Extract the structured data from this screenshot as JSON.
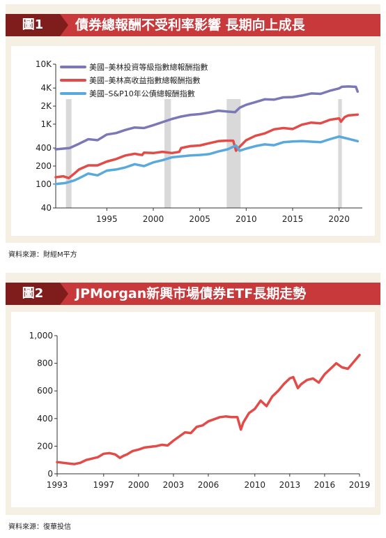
{
  "chart1": {
    "fig_label": "圖1",
    "title": "債券總報酬不受利率影響 長期向上成長",
    "source": "資料來源：財經M平方",
    "legend": [
      {
        "name": "美國–美林投資等級指數總報酬指數",
        "color": "#7b78b8"
      },
      {
        "name": "美國–美林高收益指數總報酬指數",
        "color": "#e24b47"
      },
      {
        "name": "美國–S&P10年公債總報酬指數",
        "color": "#5aa9dc"
      }
    ]
  },
  "chart2": {
    "fig_label": "圖2",
    "title": "JPMorgan新興市場債券ETF長期走勢",
    "source": "資料來源：復華投信"
  },
  "chart_data": [
    {
      "type": "line",
      "scale": "log",
      "ylim": [
        40,
        10000
      ],
      "xlim": [
        1989.5,
        2022.5
      ],
      "yticks": [
        40,
        100,
        200,
        400,
        1000,
        2000,
        4000,
        10000
      ],
      "ytick_labels": [
        "40",
        "100",
        "200",
        "400",
        "1K",
        "2K",
        "4K",
        "10K"
      ],
      "xticks": [
        1995,
        2000,
        2005,
        2010,
        2015,
        2020
      ],
      "xtick_labels": [
        "1995",
        "2000",
        "2005",
        "2010",
        "2015",
        "2020"
      ],
      "shaded_periods": [
        [
          1990.6,
          1991.2
        ],
        [
          2001.2,
          2001.9
        ],
        [
          2007.9,
          2009.4
        ],
        [
          2019.9,
          2020.3
        ]
      ],
      "series": [
        {
          "name": "美國–美林投資等級指數總報酬指數",
          "color": "#7b78b8",
          "x": [
            1989.5,
            1991,
            1992,
            1993,
            1994,
            1995,
            1996,
            1997,
            1998,
            1999,
            2000,
            2001,
            2002,
            2003,
            2004,
            2005,
            2006,
            2007,
            2008,
            2008.8,
            2009.3,
            2010,
            2011,
            2012,
            2013,
            2014,
            2015,
            2016,
            2017,
            2018,
            2019,
            2020,
            2020.3,
            2021,
            2021.8,
            2022
          ],
          "y": [
            380,
            400,
            470,
            560,
            540,
            670,
            710,
            800,
            880,
            860,
            960,
            1080,
            1220,
            1340,
            1430,
            1470,
            1560,
            1680,
            1620,
            1580,
            1880,
            2100,
            2330,
            2600,
            2560,
            2800,
            2830,
            3000,
            3250,
            3200,
            3600,
            3950,
            4200,
            4250,
            4200,
            3500
          ]
        },
        {
          "name": "美國–美林高收益指數總報酬指數",
          "color": "#e24b47",
          "x": [
            1989.5,
            1990.3,
            1990.9,
            1991.5,
            1992,
            1993,
            1994,
            1995,
            1996,
            1997,
            1998,
            1998.8,
            1999,
            2000,
            2001,
            2002,
            2002.8,
            2003,
            2004,
            2005,
            2006,
            2007,
            2007.8,
            2008.6,
            2008.9,
            2009.3,
            2010,
            2011,
            2012,
            2013,
            2014,
            2015,
            2016,
            2017,
            2018,
            2019,
            2020,
            2020.2,
            2020.6,
            2021,
            2022
          ],
          "y": [
            130,
            135,
            126,
            150,
            175,
            205,
            205,
            238,
            262,
            300,
            320,
            305,
            335,
            330,
            345,
            330,
            345,
            400,
            430,
            440,
            480,
            520,
            530,
            530,
            360,
            420,
            540,
            640,
            700,
            820,
            860,
            830,
            980,
            1060,
            1030,
            1180,
            1250,
            1100,
            1310,
            1400,
            1440
          ]
        },
        {
          "name": "美國–S&P10年公債總報酬指數",
          "color": "#5aa9dc",
          "x": [
            1989.5,
            1990.5,
            1991.5,
            1992,
            1993,
            1994,
            1995,
            1996,
            1997,
            1998,
            1999,
            2000,
            2001,
            2002,
            2003,
            2004,
            2005,
            2006,
            2007,
            2008,
            2008.9,
            2009.3,
            2010,
            2011,
            2012,
            2013,
            2014,
            2015,
            2016,
            2017,
            2018,
            2019,
            2020,
            2020.4,
            2021,
            2022
          ],
          "y": [
            100,
            104,
            115,
            125,
            150,
            140,
            168,
            175,
            190,
            215,
            200,
            230,
            250,
            280,
            290,
            300,
            306,
            316,
            350,
            380,
            440,
            360,
            390,
            430,
            460,
            445,
            500,
            515,
            520,
            510,
            500,
            560,
            620,
            600,
            570,
            520
          ]
        }
      ]
    },
    {
      "type": "line",
      "ylim": [
        0,
        1000
      ],
      "xlim": [
        1993,
        2019
      ],
      "yticks": [
        0,
        200,
        400,
        600,
        800,
        1000
      ],
      "ytick_labels": [
        "0",
        "200",
        "400",
        "600",
        "800",
        "1,000"
      ],
      "xticks": [
        1993,
        1997,
        2000,
        2003,
        2006,
        2010,
        2013,
        2016,
        2019
      ],
      "xtick_labels": [
        "1993",
        "1997",
        "2000",
        "2003",
        "2006",
        "2010",
        "2013",
        "2016",
        "2019"
      ],
      "series": [
        {
          "name": "",
          "color": "#e24b47",
          "x": [
            1993,
            1993.5,
            1994,
            1994.5,
            1995,
            1995.5,
            1996,
            1996.5,
            1997,
            1997.5,
            1998,
            1998.4,
            1998.7,
            1999,
            1999.5,
            2000,
            2000.5,
            2001,
            2001.5,
            2002,
            2002.5,
            2003,
            2003.5,
            2004,
            2004.5,
            2005,
            2005.5,
            2006,
            2006.5,
            2007,
            2007.5,
            2008,
            2008.5,
            2008.8,
            2009,
            2009.5,
            2010,
            2010.5,
            2011,
            2011.5,
            2012,
            2012.5,
            2013,
            2013.3,
            2013.7,
            2014,
            2014.5,
            2015,
            2015.5,
            2016,
            2016.5,
            2017,
            2017.5,
            2018,
            2018.5,
            2019
          ],
          "y": [
            85,
            80,
            75,
            70,
            80,
            100,
            110,
            120,
            145,
            150,
            140,
            115,
            130,
            140,
            165,
            175,
            190,
            195,
            200,
            210,
            205,
            240,
            270,
            300,
            295,
            340,
            350,
            380,
            395,
            410,
            415,
            410,
            410,
            320,
            370,
            440,
            470,
            530,
            490,
            560,
            600,
            650,
            690,
            700,
            620,
            650,
            680,
            690,
            660,
            720,
            760,
            800,
            770,
            760,
            810,
            860
          ]
        }
      ]
    }
  ]
}
